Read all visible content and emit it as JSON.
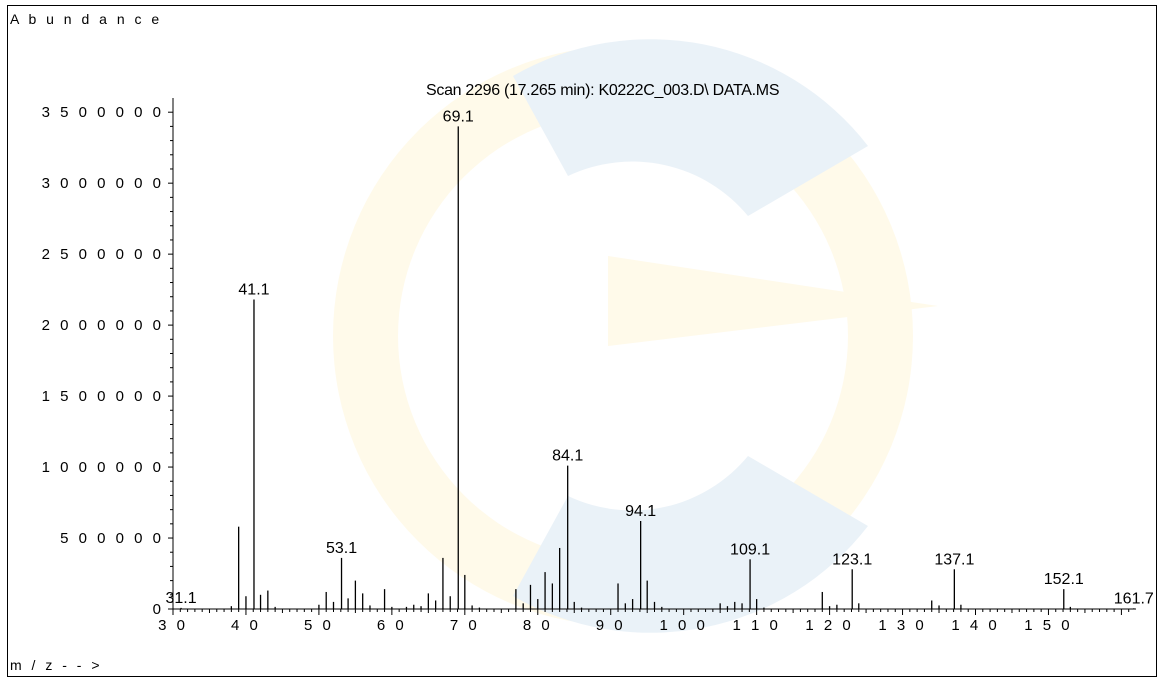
{
  "chart_data": {
    "type": "bar",
    "title": "Scan 2296 (17.265 min): K0222C_003.D\\ DATA.MS",
    "ylabel": "A b u n d a n c e",
    "xlabel": "m / z - - >",
    "xlim": [
      30,
      162
    ],
    "ylim": [
      0,
      3600000
    ],
    "x_ticks": [
      30,
      40,
      50,
      60,
      70,
      80,
      90,
      100,
      110,
      120,
      130,
      140,
      150
    ],
    "x_tick_labels": [
      "3 0",
      "4 0",
      "5 0",
      "6 0",
      "7 0",
      "8 0",
      "9 0",
      "1 0 0",
      "1 1 0",
      "1 2 0",
      "1 3 0",
      "1 4 0",
      "1 5 0"
    ],
    "y_ticks": [
      0,
      500000,
      1000000,
      1500000,
      2000000,
      2500000,
      3000000,
      3500000
    ],
    "y_tick_labels": [
      "0",
      "5 0 0 0 0 0",
      "1 0 0 0 0 0 0",
      "1 5 0 0 0 0 0",
      "2 0 0 0 0 0 0",
      "2 5 0 0 0 0 0",
      "3 0 0 0 0 0 0",
      "3 5 0 0 0 0 0"
    ],
    "peaks": [
      {
        "mz": 31.1,
        "abundance": 8000,
        "label": "31.1"
      },
      {
        "mz": 38.0,
        "abundance": 20000
      },
      {
        "mz": 39.0,
        "abundance": 580000
      },
      {
        "mz": 40.0,
        "abundance": 90000
      },
      {
        "mz": 41.1,
        "abundance": 2180000,
        "label": "41.1"
      },
      {
        "mz": 42.0,
        "abundance": 100000
      },
      {
        "mz": 43.0,
        "abundance": 130000
      },
      {
        "mz": 44.0,
        "abundance": 15000
      },
      {
        "mz": 50.0,
        "abundance": 30000
      },
      {
        "mz": 51.0,
        "abundance": 120000
      },
      {
        "mz": 52.0,
        "abundance": 50000
      },
      {
        "mz": 53.1,
        "abundance": 360000,
        "label": "53.1"
      },
      {
        "mz": 54.0,
        "abundance": 75000
      },
      {
        "mz": 55.0,
        "abundance": 200000
      },
      {
        "mz": 56.0,
        "abundance": 110000
      },
      {
        "mz": 57.0,
        "abundance": 25000
      },
      {
        "mz": 59.0,
        "abundance": 140000
      },
      {
        "mz": 60.0,
        "abundance": 15000
      },
      {
        "mz": 62.0,
        "abundance": 15000
      },
      {
        "mz": 63.0,
        "abundance": 30000
      },
      {
        "mz": 64.0,
        "abundance": 20000
      },
      {
        "mz": 65.0,
        "abundance": 110000
      },
      {
        "mz": 66.0,
        "abundance": 60000
      },
      {
        "mz": 67.0,
        "abundance": 360000
      },
      {
        "mz": 68.0,
        "abundance": 90000
      },
      {
        "mz": 69.1,
        "abundance": 3400000,
        "label": "69.1"
      },
      {
        "mz": 70.0,
        "abundance": 240000
      },
      {
        "mz": 71.0,
        "abundance": 25000
      },
      {
        "mz": 72.0,
        "abundance": 10000
      },
      {
        "mz": 77.0,
        "abundance": 140000
      },
      {
        "mz": 78.0,
        "abundance": 40000
      },
      {
        "mz": 79.0,
        "abundance": 170000
      },
      {
        "mz": 80.0,
        "abundance": 70000
      },
      {
        "mz": 81.0,
        "abundance": 260000
      },
      {
        "mz": 82.0,
        "abundance": 180000
      },
      {
        "mz": 83.0,
        "abundance": 430000
      },
      {
        "mz": 84.1,
        "abundance": 1010000,
        "label": "84.1"
      },
      {
        "mz": 85.0,
        "abundance": 50000
      },
      {
        "mz": 86.0,
        "abundance": 10000
      },
      {
        "mz": 91.0,
        "abundance": 180000
      },
      {
        "mz": 92.0,
        "abundance": 40000
      },
      {
        "mz": 93.0,
        "abundance": 70000
      },
      {
        "mz": 94.1,
        "abundance": 620000,
        "label": "94.1"
      },
      {
        "mz": 95.0,
        "abundance": 200000
      },
      {
        "mz": 96.0,
        "abundance": 50000
      },
      {
        "mz": 97.0,
        "abundance": 15000
      },
      {
        "mz": 105.0,
        "abundance": 40000
      },
      {
        "mz": 106.0,
        "abundance": 20000
      },
      {
        "mz": 107.0,
        "abundance": 50000
      },
      {
        "mz": 108.0,
        "abundance": 40000
      },
      {
        "mz": 109.1,
        "abundance": 350000,
        "label": "109.1"
      },
      {
        "mz": 110.0,
        "abundance": 70000
      },
      {
        "mz": 111.0,
        "abundance": 10000
      },
      {
        "mz": 119.0,
        "abundance": 120000
      },
      {
        "mz": 120.0,
        "abundance": 20000
      },
      {
        "mz": 121.0,
        "abundance": 30000
      },
      {
        "mz": 123.1,
        "abundance": 280000,
        "label": "123.1"
      },
      {
        "mz": 124.0,
        "abundance": 40000
      },
      {
        "mz": 134.0,
        "abundance": 60000
      },
      {
        "mz": 135.0,
        "abundance": 25000
      },
      {
        "mz": 137.1,
        "abundance": 280000,
        "label": "137.1"
      },
      {
        "mz": 138.0,
        "abundance": 30000
      },
      {
        "mz": 152.1,
        "abundance": 140000,
        "label": "152.1"
      },
      {
        "mz": 153.0,
        "abundance": 15000
      },
      {
        "mz": 161.7,
        "abundance": 5000,
        "label": "161.7"
      }
    ]
  }
}
